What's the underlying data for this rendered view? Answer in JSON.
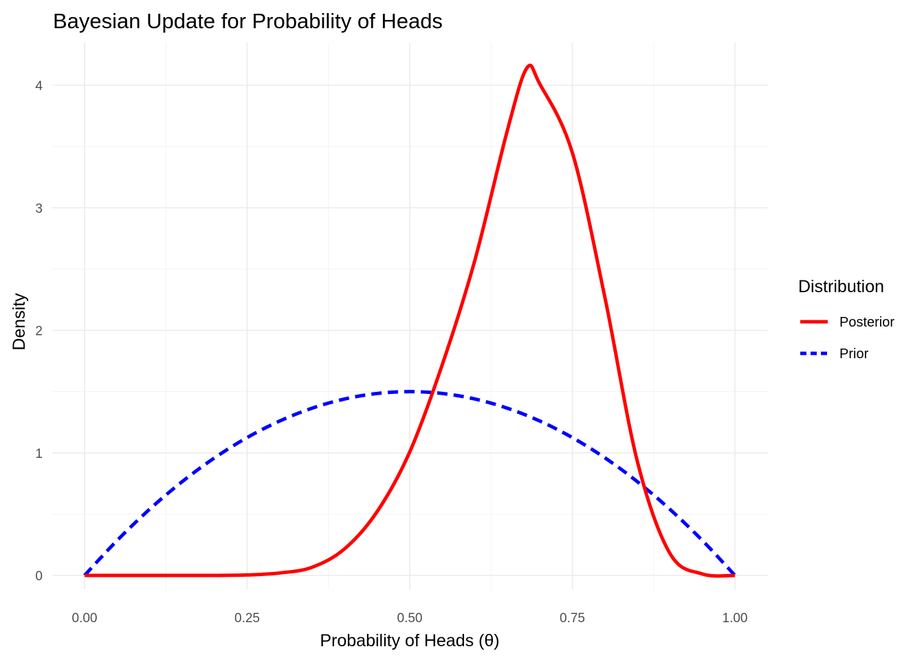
{
  "chart_data": {
    "type": "line",
    "title": "Bayesian Update for Probability of Heads",
    "xlabel": "Probability of Heads (θ)",
    "ylabel": "Density",
    "xlim": [
      0,
      1
    ],
    "ylim": [
      0,
      4.15
    ],
    "x_ticks": [
      0,
      0.25,
      0.5,
      0.75,
      1
    ],
    "x_tick_labels": [
      "0.00",
      "0.25",
      "0.50",
      "0.75",
      "1.00"
    ],
    "y_ticks": [
      0,
      1,
      2,
      3,
      4
    ],
    "y_tick_labels": [
      "0",
      "1",
      "2",
      "3",
      "4"
    ],
    "grid": true,
    "legend": {
      "title": "Distribution",
      "position": "right",
      "entries": [
        {
          "label": "Posterior",
          "color": "#ff0000",
          "linetype": "solid"
        },
        {
          "label": "Prior",
          "color": "#0000ff",
          "linetype": "dashed"
        }
      ]
    },
    "series": [
      {
        "name": "Posterior",
        "color": "#ff0000",
        "linetype": "solid",
        "x": [
          0,
          0.05,
          0.1,
          0.15,
          0.2,
          0.25,
          0.3,
          0.35,
          0.4,
          0.45,
          0.5,
          0.55,
          0.6,
          0.65,
          0.68,
          0.7,
          0.75,
          0.8,
          0.85,
          0.9,
          0.95,
          1
        ],
        "y": [
          0,
          0,
          0,
          0,
          0,
          0.004,
          0.02,
          0.067,
          0.218,
          0.522,
          1.008,
          1.72,
          2.57,
          3.63,
          4.14,
          4.01,
          3.45,
          2.27,
          0.93,
          0.18,
          0.012,
          0
        ]
      },
      {
        "name": "Prior",
        "color": "#0000ff",
        "linetype": "dashed",
        "x": [
          0,
          0.05,
          0.1,
          0.15,
          0.2,
          0.25,
          0.3,
          0.35,
          0.4,
          0.45,
          0.5,
          0.55,
          0.6,
          0.65,
          0.7,
          0.75,
          0.8,
          0.85,
          0.9,
          0.95,
          1
        ],
        "y": [
          0,
          0.285,
          0.54,
          0.765,
          0.96,
          1.125,
          1.26,
          1.365,
          1.44,
          1.485,
          1.5,
          1.485,
          1.44,
          1.365,
          1.26,
          1.125,
          0.96,
          0.765,
          0.54,
          0.285,
          0
        ]
      }
    ]
  }
}
